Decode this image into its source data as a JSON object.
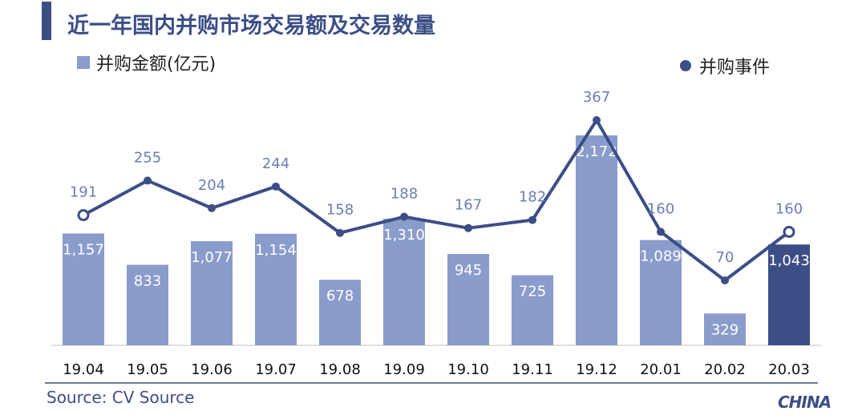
{
  "title": "近一年国内并购市场交易额及交易数量",
  "source": "Source: CV Source",
  "logo_text": "CHINA",
  "colors": {
    "bar": "#8a9ccb",
    "bar_highlight": "#3c4e86",
    "line": "#3c4e86",
    "line_label": "#6b7db3"
  },
  "chart_data": {
    "type": "bar",
    "categories": [
      "19.04",
      "19.05",
      "19.06",
      "19.07",
      "19.08",
      "19.09",
      "19.10",
      "19.11",
      "19.12",
      "20.01",
      "20.02",
      "20.03"
    ],
    "series": [
      {
        "name": "并购金额(亿元)",
        "type": "bar",
        "values": [
          1157,
          833,
          1077,
          1154,
          678,
          1310,
          945,
          725,
          2172,
          1089,
          329,
          1043
        ],
        "labels": [
          "1,157",
          "833",
          "1,077",
          "1,154",
          "678",
          "1,310",
          "945",
          "725",
          "2,172",
          "1,089",
          "329",
          "1,043"
        ]
      },
      {
        "name": "并购事件",
        "type": "line",
        "values": [
          191,
          255,
          204,
          244,
          158,
          188,
          167,
          182,
          367,
          160,
          70,
          160
        ],
        "labels": [
          "191",
          "255",
          "204",
          "244",
          "158",
          "188",
          "167",
          "182",
          "367",
          "160",
          "70",
          "160"
        ]
      }
    ],
    "highlighted_category": "20.03",
    "hollow_markers": [
      "19.04",
      "20.03"
    ],
    "legend": "top"
  }
}
